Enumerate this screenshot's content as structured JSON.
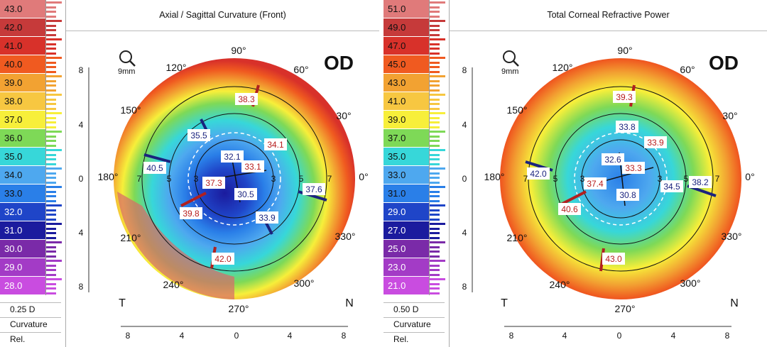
{
  "panels": [
    {
      "id": "left",
      "title": "Axial / Sagittal Curvature (Front)",
      "eye": "OD",
      "zoom": "9mm",
      "scale_values": [
        "43.0",
        "42.0",
        "41.0",
        "40.0",
        "39.0",
        "38.0",
        "37.0",
        "36.0",
        "35.0",
        "34.0",
        "33.0",
        "32.0",
        "31.0",
        "30.0",
        "29.0",
        "28.0"
      ],
      "scale_colors": [
        "#e07a7a",
        "#c63a3a",
        "#d8312a",
        "#f05a20",
        "#f2a232",
        "#f7c741",
        "#f7ef3a",
        "#7ed957",
        "#37d7d9",
        "#4ea8ef",
        "#2a7fe8",
        "#1f45c8",
        "#1b1b9e",
        "#7a2aa8",
        "#a33bc6",
        "#c94ce0"
      ],
      "step": "0.25 D",
      "type": "Curvature",
      "mode": "Rel.",
      "axis_labels": [
        "90°",
        "60°",
        "30°",
        "0°",
        "330°",
        "300°",
        "270°",
        "240°",
        "210°",
        "180°",
        "150°",
        "120°"
      ],
      "side_left": "T",
      "side_right": "N",
      "x_ticks": [
        "8",
        "4",
        "0",
        "4",
        "8"
      ],
      "y_ticks": [
        "8",
        "4",
        "0",
        "4",
        "8"
      ],
      "ring_labels": [
        "3",
        "3",
        "5",
        "5",
        "7",
        "7"
      ],
      "readings": {
        "r1": "38.3",
        "r2": "35.5",
        "r3": "40.5",
        "r4": "32.1",
        "r5": "34.1",
        "r6": "33.1",
        "r7": "37.3",
        "r8": "37.6",
        "r9": "30.5",
        "r10": "39.8",
        "r11": "33.9",
        "r12": "42.0"
      }
    },
    {
      "id": "right",
      "title": "Total Corneal Refractive Power",
      "eye": "OD",
      "zoom": "9mm",
      "scale_values": [
        "51.0",
        "49.0",
        "47.0",
        "45.0",
        "43.0",
        "41.0",
        "39.0",
        "37.0",
        "35.0",
        "33.0",
        "31.0",
        "29.0",
        "27.0",
        "25.0",
        "23.0",
        "21.0"
      ],
      "scale_colors": [
        "#e07a7a",
        "#c63a3a",
        "#d8312a",
        "#f05a20",
        "#f2a232",
        "#f7c741",
        "#f7ef3a",
        "#7ed957",
        "#37d7d9",
        "#4ea8ef",
        "#2a7fe8",
        "#1f45c8",
        "#1b1b9e",
        "#7a2aa8",
        "#a33bc6",
        "#c94ce0"
      ],
      "step": "0.50 D",
      "type": "Curvature",
      "mode": "Rel.",
      "axis_labels": [
        "90°",
        "60°",
        "30°",
        "0°",
        "330°",
        "300°",
        "270°",
        "240°",
        "210°",
        "180°",
        "150°",
        "120°"
      ],
      "side_left": "T",
      "side_right": "N",
      "x_ticks": [
        "8",
        "4",
        "0",
        "4",
        "8"
      ],
      "y_ticks": [
        "8",
        "4",
        "0",
        "4",
        "8"
      ],
      "ring_labels": [
        "3",
        "3",
        "5",
        "5",
        "7",
        "7"
      ],
      "readings": {
        "r1": "39.3",
        "r2": "33.8",
        "r3": "42.0",
        "r4": "32.6",
        "r5": "33.9",
        "r6": "33.3",
        "r7": "37.4",
        "r8": "38.2",
        "r8b": "34.5",
        "r9": "30.8",
        "r10": "40.6",
        "r12": "43.0"
      }
    }
  ]
}
